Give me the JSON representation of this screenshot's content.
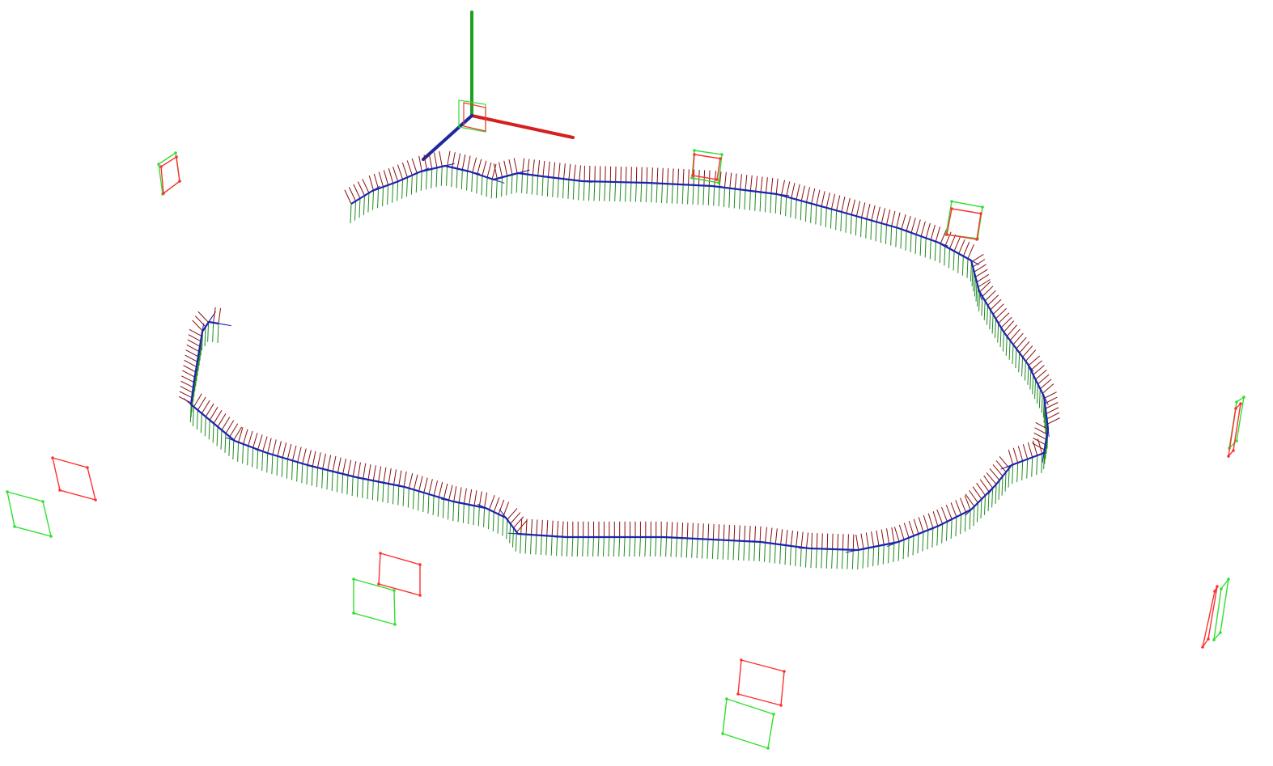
{
  "scene": {
    "background": "#ffffff",
    "colors": {
      "x_axis": "#d42020",
      "y_axis": "#20a020",
      "z_axis": "#1e2a9a",
      "marker_red": "#ff3030",
      "marker_green": "#30e030",
      "traj_red": "#8a0e0e",
      "traj_green": "#1e8a1e",
      "traj_blue": "#1a24b0"
    },
    "world_axes": {
      "x": "red",
      "y": "green",
      "z": "blue"
    },
    "trajectory": {
      "shape": "closed loop",
      "frame_axes": [
        "red",
        "green",
        "blue"
      ]
    },
    "markers": [
      {
        "color": "red"
      },
      {
        "color": "green"
      },
      {
        "color": "red"
      },
      {
        "color": "green"
      },
      {
        "color": "red"
      },
      {
        "color": "green"
      },
      {
        "color": "red"
      },
      {
        "color": "green"
      },
      {
        "color": "red"
      },
      {
        "color": "green"
      },
      {
        "color": "red"
      },
      {
        "color": "green"
      },
      {
        "color": "red"
      },
      {
        "color": "green"
      },
      {
        "color": "red"
      },
      {
        "color": "green"
      }
    ]
  }
}
